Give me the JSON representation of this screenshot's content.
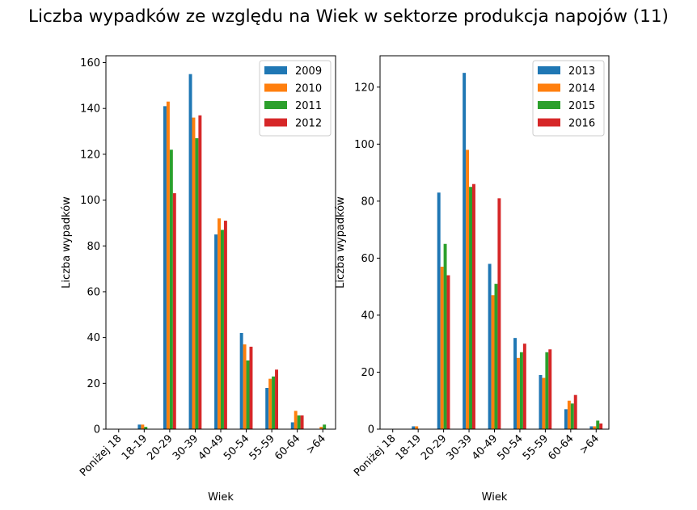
{
  "figure": {
    "title": "Liczba wypadków ze względu na Wiek w sektorze produkcja napojów  (11)"
  },
  "chart_data": [
    {
      "type": "bar",
      "categories": [
        "Poniżej 18",
        "18-19",
        "20-29",
        "30-39",
        "40-49",
        "50-54",
        "55-59",
        "60-64",
        ">64"
      ],
      "xlabel": "Wiek",
      "ylabel": "Liczba wypadków",
      "ylim": [
        0,
        163
      ],
      "yticks": [
        0,
        20,
        40,
        60,
        80,
        100,
        120,
        140,
        160
      ],
      "legend_position": "top-right",
      "grid": false,
      "series": [
        {
          "name": "2009",
          "color": "#1f77b4",
          "values": [
            0,
            2,
            141,
            155,
            85,
            42,
            18,
            3,
            0
          ]
        },
        {
          "name": "2010",
          "color": "#ff7f0e",
          "values": [
            0,
            2,
            143,
            136,
            92,
            37,
            22,
            8,
            1
          ]
        },
        {
          "name": "2011",
          "color": "#2ca02c",
          "values": [
            0,
            1,
            122,
            127,
            87,
            30,
            23,
            6,
            2
          ]
        },
        {
          "name": "2012",
          "color": "#d62728",
          "values": [
            0,
            0,
            103,
            137,
            91,
            36,
            26,
            6,
            0
          ]
        }
      ]
    },
    {
      "type": "bar",
      "categories": [
        "Poniżej 18",
        "18-19",
        "20-29",
        "30-39",
        "40-49",
        "50-54",
        "55-59",
        "60-64",
        ">64"
      ],
      "xlabel": "Wiek",
      "ylabel": "Liczba wypadków",
      "ylim": [
        0,
        131
      ],
      "yticks": [
        0,
        20,
        40,
        60,
        80,
        100,
        120
      ],
      "legend_position": "top-right",
      "grid": false,
      "series": [
        {
          "name": "2013",
          "color": "#1f77b4",
          "values": [
            0,
            1,
            83,
            125,
            58,
            32,
            19,
            7,
            1
          ]
        },
        {
          "name": "2014",
          "color": "#ff7f0e",
          "values": [
            0,
            1,
            57,
            98,
            47,
            25,
            18,
            10,
            1
          ]
        },
        {
          "name": "2015",
          "color": "#2ca02c",
          "values": [
            0,
            0,
            65,
            85,
            51,
            27,
            27,
            9,
            3
          ]
        },
        {
          "name": "2016",
          "color": "#d62728",
          "values": [
            0,
            0,
            54,
            86,
            81,
            30,
            28,
            12,
            2
          ]
        }
      ]
    }
  ]
}
